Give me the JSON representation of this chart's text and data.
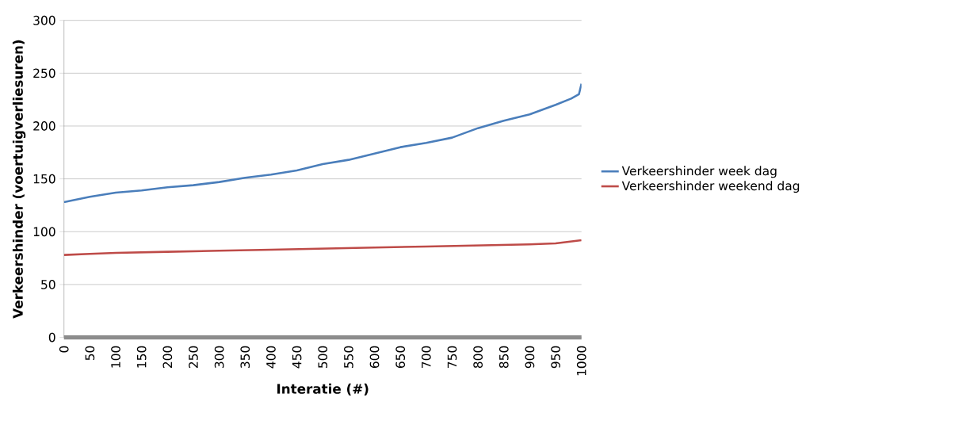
{
  "chart_data": {
    "type": "line",
    "xlabel": "Interatie (#)",
    "ylabel": "Verkeershinder (voertuigverliesuren)",
    "xlim": [
      0,
      1000
    ],
    "xticks": [
      0,
      50,
      100,
      150,
      200,
      250,
      300,
      350,
      400,
      450,
      500,
      550,
      600,
      650,
      700,
      750,
      800,
      850,
      900,
      950,
      1000
    ],
    "ylim": [
      0,
      300
    ],
    "yticks": [
      0,
      50,
      100,
      150,
      200,
      250,
      300
    ],
    "grid": "y",
    "legend": "right",
    "marker": "none",
    "line_style": "solid",
    "series": [
      {
        "name": "Verkeershinder week dag",
        "color": "#4a7ebb",
        "x": [
          0,
          50,
          100,
          150,
          200,
          250,
          300,
          350,
          400,
          450,
          500,
          550,
          600,
          650,
          700,
          750,
          800,
          850,
          900,
          950,
          980,
          995,
          1000
        ],
        "values": [
          128,
          133,
          137,
          139,
          142,
          144,
          147,
          151,
          154,
          158,
          164,
          168,
          174,
          180,
          184,
          189,
          198,
          205,
          211,
          220,
          226,
          230,
          240
        ]
      },
      {
        "name": "Verkeershinder weekend dag",
        "color": "#be4b48",
        "x": [
          0,
          50,
          100,
          200,
          300,
          400,
          500,
          600,
          700,
          800,
          900,
          950,
          1000
        ],
        "values": [
          78,
          79,
          80,
          81,
          82,
          83,
          84,
          85,
          86,
          87,
          88,
          89,
          92
        ]
      }
    ]
  }
}
